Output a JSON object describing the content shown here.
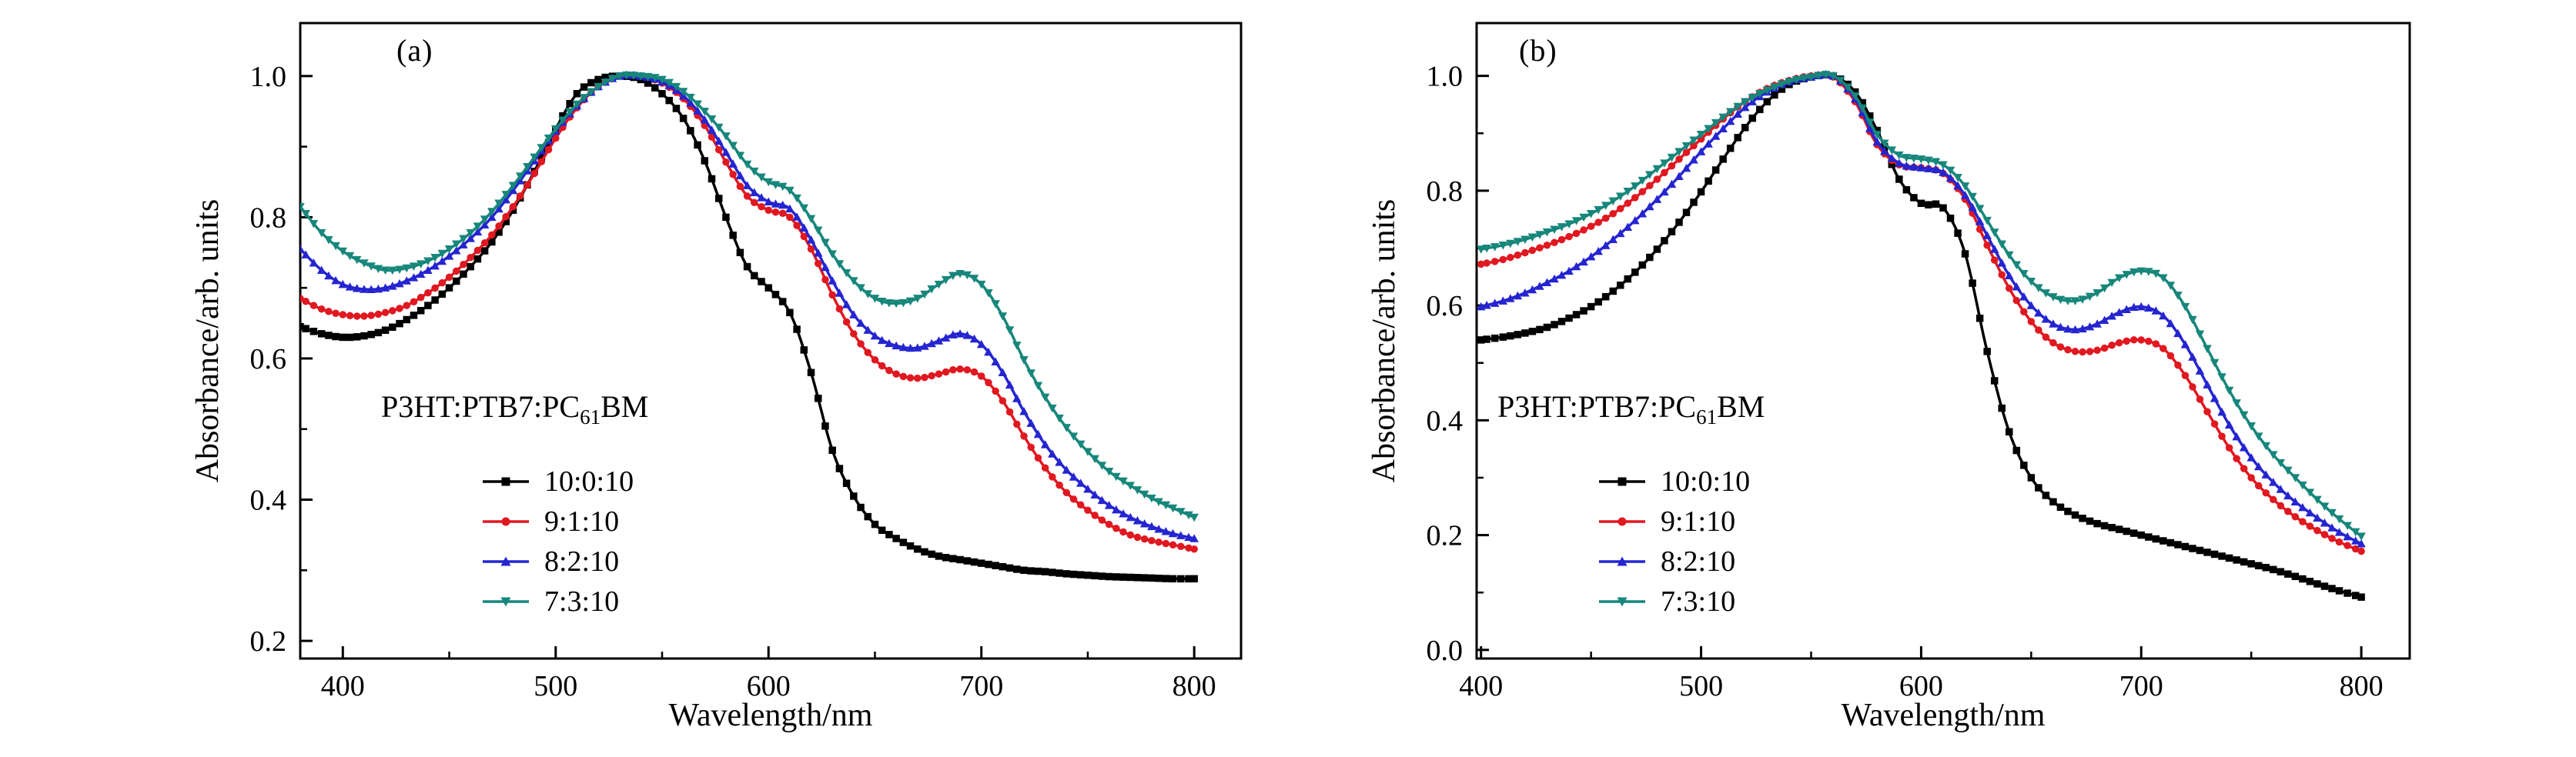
{
  "figure": {
    "background": "#ffffff",
    "text_color": "#000000"
  },
  "chart_data": [
    {
      "type": "line",
      "panel_label": "(a)",
      "xlabel": "Wavelength/nm",
      "ylabel": "Absorbance/arb. units",
      "xlim": [
        380,
        822
      ],
      "ylim": [
        0.175,
        1.075
      ],
      "xticks": [
        400,
        500,
        600,
        700,
        800
      ],
      "yticks": [
        0.2,
        0.4,
        0.6,
        0.8,
        1.0
      ],
      "x_minor_step": 50,
      "y_minor_step": 0.1,
      "grid": false,
      "legend": {
        "title_pre": "P3HT:PTB7:PC",
        "title_sub": "61",
        "title_post": "BM",
        "position": "left-center"
      },
      "x": [
        380,
        390,
        400,
        410,
        420,
        430,
        440,
        450,
        460,
        470,
        480,
        490,
        500,
        510,
        520,
        530,
        540,
        550,
        560,
        570,
        580,
        590,
        600,
        610,
        620,
        630,
        640,
        650,
        660,
        670,
        680,
        690,
        700,
        710,
        720,
        730,
        740,
        750,
        760,
        770,
        780,
        790,
        800
      ],
      "series": [
        {
          "name": "10:0:10",
          "color": "#000000",
          "marker": "square",
          "values": [
            0.645,
            0.635,
            0.63,
            0.632,
            0.64,
            0.655,
            0.675,
            0.7,
            0.73,
            0.765,
            0.81,
            0.865,
            0.925,
            0.975,
            0.995,
            1.0,
            0.995,
            0.975,
            0.94,
            0.88,
            0.8,
            0.73,
            0.7,
            0.665,
            0.58,
            0.47,
            0.405,
            0.365,
            0.345,
            0.33,
            0.32,
            0.315,
            0.31,
            0.305,
            0.3,
            0.298,
            0.295,
            0.293,
            0.291,
            0.29,
            0.289,
            0.288,
            0.288
          ]
        },
        {
          "name": "9:1:10",
          "color": "#e01820",
          "marker": "circle",
          "values": [
            0.685,
            0.67,
            0.662,
            0.66,
            0.665,
            0.675,
            0.693,
            0.715,
            0.743,
            0.775,
            0.815,
            0.862,
            0.912,
            0.955,
            0.985,
            1.0,
            1.0,
            0.99,
            0.968,
            0.93,
            0.878,
            0.83,
            0.81,
            0.8,
            0.755,
            0.69,
            0.635,
            0.598,
            0.578,
            0.572,
            0.578,
            0.585,
            0.575,
            0.54,
            0.49,
            0.445,
            0.41,
            0.385,
            0.365,
            0.35,
            0.342,
            0.336,
            0.33
          ]
        },
        {
          "name": "8:2:10",
          "color": "#2525d0",
          "marker": "triangle-up",
          "values": [
            0.755,
            0.725,
            0.705,
            0.698,
            0.7,
            0.71,
            0.725,
            0.745,
            0.77,
            0.8,
            0.838,
            0.88,
            0.922,
            0.958,
            0.985,
            1.0,
            1.0,
            0.992,
            0.972,
            0.938,
            0.892,
            0.845,
            0.822,
            0.812,
            0.768,
            0.71,
            0.662,
            0.632,
            0.618,
            0.615,
            0.625,
            0.635,
            0.62,
            0.58,
            0.525,
            0.478,
            0.442,
            0.415,
            0.392,
            0.375,
            0.362,
            0.352,
            0.345
          ]
        },
        {
          "name": "7:3:10",
          "color": "#17867b",
          "marker": "triangle-down",
          "values": [
            0.815,
            0.778,
            0.752,
            0.735,
            0.725,
            0.728,
            0.738,
            0.755,
            0.778,
            0.808,
            0.845,
            0.885,
            0.925,
            0.96,
            0.985,
            1.0,
            1.0,
            0.995,
            0.978,
            0.95,
            0.915,
            0.875,
            0.85,
            0.838,
            0.798,
            0.748,
            0.71,
            0.685,
            0.678,
            0.685,
            0.705,
            0.72,
            0.705,
            0.66,
            0.598,
            0.545,
            0.502,
            0.468,
            0.44,
            0.42,
            0.402,
            0.388,
            0.375
          ]
        }
      ]
    },
    {
      "type": "line",
      "panel_label": "(b)",
      "xlabel": "Wavelength/nm",
      "ylabel": "Absorbance/arb. units",
      "xlim": [
        398,
        822
      ],
      "ylim": [
        -0.015,
        1.092
      ],
      "xticks": [
        400,
        500,
        600,
        700,
        800
      ],
      "yticks": [
        0.0,
        0.2,
        0.4,
        0.6,
        0.8,
        1.0
      ],
      "x_minor_step": 50,
      "y_minor_step": 0.1,
      "grid": false,
      "legend": {
        "title_pre": "P3HT:PTB7:PC",
        "title_sub": "61",
        "title_post": "BM",
        "position": "left-center"
      },
      "x": [
        400,
        410,
        420,
        430,
        440,
        450,
        460,
        470,
        480,
        490,
        500,
        510,
        520,
        530,
        540,
        550,
        560,
        570,
        580,
        590,
        600,
        610,
        620,
        630,
        640,
        650,
        660,
        670,
        680,
        690,
        700,
        710,
        720,
        730,
        740,
        750,
        760,
        770,
        780,
        790,
        800
      ],
      "series": [
        {
          "name": "10:0:10",
          "color": "#000000",
          "marker": "square",
          "values": [
            0.54,
            0.545,
            0.552,
            0.562,
            0.578,
            0.598,
            0.625,
            0.658,
            0.698,
            0.745,
            0.798,
            0.855,
            0.91,
            0.955,
            0.985,
            0.998,
            1.0,
            0.972,
            0.905,
            0.82,
            0.778,
            0.77,
            0.69,
            0.52,
            0.38,
            0.3,
            0.258,
            0.235,
            0.22,
            0.21,
            0.2,
            0.19,
            0.18,
            0.17,
            0.16,
            0.15,
            0.14,
            0.128,
            0.115,
            0.103,
            0.092
          ]
        },
        {
          "name": "9:1:10",
          "color": "#e01820",
          "marker": "circle",
          "values": [
            0.672,
            0.68,
            0.692,
            0.705,
            0.72,
            0.738,
            0.76,
            0.788,
            0.82,
            0.855,
            0.89,
            0.925,
            0.955,
            0.978,
            0.992,
            1.0,
            0.998,
            0.955,
            0.88,
            0.845,
            0.84,
            0.83,
            0.785,
            0.705,
            0.63,
            0.572,
            0.535,
            0.52,
            0.522,
            0.535,
            0.54,
            0.525,
            0.478,
            0.415,
            0.352,
            0.3,
            0.262,
            0.232,
            0.208,
            0.188,
            0.172
          ]
        },
        {
          "name": "8:2:10",
          "color": "#2525d0",
          "marker": "triangle-up",
          "values": [
            0.598,
            0.608,
            0.622,
            0.64,
            0.66,
            0.685,
            0.715,
            0.748,
            0.785,
            0.825,
            0.868,
            0.908,
            0.945,
            0.972,
            0.99,
            0.998,
            1.0,
            0.96,
            0.885,
            0.848,
            0.84,
            0.832,
            0.792,
            0.722,
            0.652,
            0.6,
            0.568,
            0.558,
            0.568,
            0.588,
            0.598,
            0.582,
            0.532,
            0.462,
            0.392,
            0.335,
            0.292,
            0.258,
            0.23,
            0.205,
            0.185
          ]
        },
        {
          "name": "7:3:10",
          "color": "#17867b",
          "marker": "triangle-down",
          "values": [
            0.698,
            0.705,
            0.715,
            0.728,
            0.742,
            0.76,
            0.782,
            0.808,
            0.838,
            0.868,
            0.898,
            0.928,
            0.955,
            0.975,
            0.99,
            0.998,
            1.0,
            0.965,
            0.898,
            0.862,
            0.855,
            0.845,
            0.808,
            0.748,
            0.688,
            0.642,
            0.615,
            0.608,
            0.622,
            0.648,
            0.66,
            0.648,
            0.598,
            0.525,
            0.452,
            0.39,
            0.34,
            0.3,
            0.262,
            0.228,
            0.198
          ]
        }
      ]
    }
  ]
}
